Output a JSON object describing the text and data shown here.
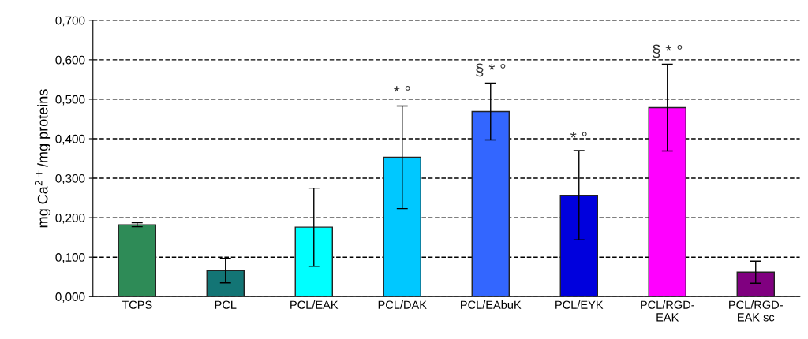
{
  "chart_data": {
    "type": "bar",
    "ylabel": "mg Ca$^{2+}$/mg proteins",
    "categories": [
      "TCPS",
      "PCL",
      "PCL/EAK",
      "PCL/DAK",
      "PCL/EAbuK",
      "PCL/EYK",
      "PCL/RGD-\nEAK",
      "PCL/RGD-\nEAK sc"
    ],
    "values": [
      0.182,
      0.066,
      0.176,
      0.353,
      0.469,
      0.257,
      0.479,
      0.062
    ],
    "errors": [
      0.005,
      0.031,
      0.099,
      0.13,
      0.072,
      0.113,
      0.11,
      0.028
    ],
    "colors": [
      "#2e8b57",
      "#137575",
      "#00ffff",
      "#00c8ff",
      "#3366ff",
      "#0000dd",
      "#ff00ff",
      "#800080"
    ],
    "ylim": [
      0,
      0.7
    ],
    "yticks": [
      {
        "value": 0,
        "label": "0,000"
      },
      {
        "value": 0.1,
        "label": "0,100"
      },
      {
        "value": 0.2,
        "label": "0,200"
      },
      {
        "value": 0.3,
        "label": "0,300"
      },
      {
        "value": 0.4,
        "label": "0,400"
      },
      {
        "value": 0.5,
        "label": "0,500"
      },
      {
        "value": 0.6,
        "label": "0,600"
      },
      {
        "value": 0.7,
        "label": "0,700"
      }
    ],
    "grid": "y",
    "line_style": "dashed",
    "annotations": [
      {
        "text": "* °",
        "x": "PCL/DAK",
        "y": 0.485
      },
      {
        "text": "§ * °",
        "x": "PCL/EAbuK",
        "y": 0.541
      },
      {
        "text": "* °",
        "x": "PCL/EYK",
        "y": 0.369
      },
      {
        "text": "§ * °",
        "x": "PCL/RGD-\nEAK",
        "y": 0.589
      }
    ]
  }
}
